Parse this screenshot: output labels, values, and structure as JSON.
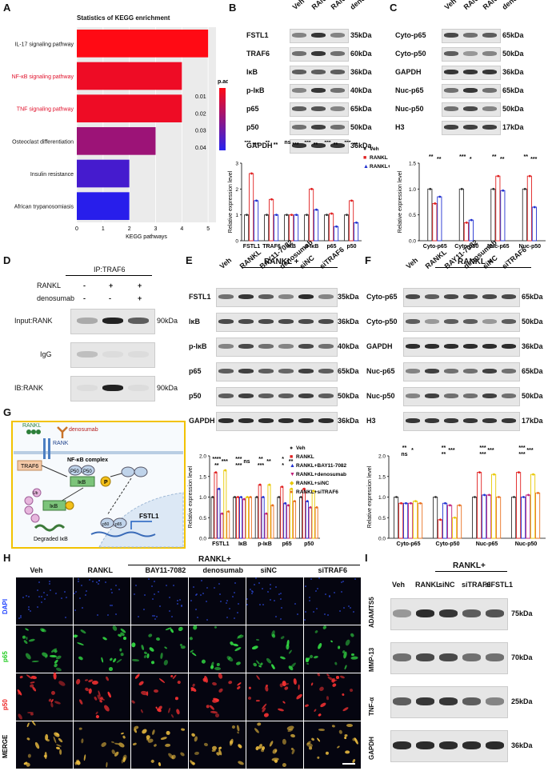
{
  "panel_letters": [
    "A",
    "B",
    "C",
    "D",
    "E",
    "F",
    "G",
    "H",
    "I"
  ],
  "panelA": {
    "title": "Statistics of KEGG enrichment",
    "xlabel": "KEGG pathways",
    "legend_title": "p.adjust",
    "legend_ticks": [
      "0.01",
      "0.02",
      "0.03",
      "0.04"
    ],
    "x_ticks": [
      "0",
      "1",
      "2",
      "3",
      "4",
      "5"
    ],
    "colors": {
      "high": "#ff0a0a",
      "low": "#2222ee",
      "highlight": "#e0102a"
    },
    "chart_data": {
      "type": "bar",
      "orientation": "horizontal",
      "categories": [
        "IL-17 signaling pathway",
        "NF-κB signaling pathway",
        "TNF signaling pathway",
        "Osteoclast differentiation",
        "Insulin resistance",
        "African trypanosomiasis"
      ],
      "values": [
        5,
        4,
        4,
        3,
        2,
        2
      ],
      "padj": [
        0.003,
        0.006,
        0.006,
        0.02,
        0.035,
        0.04
      ],
      "highlighted": [
        false,
        true,
        true,
        false,
        false,
        false
      ],
      "xlim": [
        0,
        5.3
      ]
    }
  },
  "panelB": {
    "header": [
      "Veh",
      "RANKL",
      "RANKL+",
      "denosumab"
    ],
    "rows": [
      {
        "label": "FSTL1",
        "kda": "35kDa"
      },
      {
        "label": "TRAF6",
        "kda": "60kDa"
      },
      {
        "label": "IκB",
        "kda": "36kDa"
      },
      {
        "label": "p-IκB",
        "kda": "40kDa"
      },
      {
        "label": "p65",
        "kda": "65kDa"
      },
      {
        "label": "p50",
        "kda": "50kDa"
      },
      {
        "label": "GAPDH",
        "kda": "36kDa"
      }
    ],
    "chart_data": {
      "type": "bar",
      "ylabel": "Relative expression level",
      "categories": [
        "FSTL1",
        "TRAF6",
        "IκB",
        "p-IκB",
        "p65",
        "p50"
      ],
      "series": [
        {
          "name": "Veh",
          "values": [
            1,
            1,
            1,
            1,
            1,
            1
          ]
        },
        {
          "name": "RANKL",
          "values": [
            2.6,
            1.6,
            1.0,
            2.0,
            1.05,
            1.55
          ]
        },
        {
          "name": "RANKL+ denosumab",
          "values": [
            1.55,
            1.0,
            1.0,
            1.2,
            0.55,
            0.7
          ]
        }
      ],
      "ylim": [
        0,
        3
      ],
      "yticks": [
        "0",
        "1",
        "2",
        "3"
      ],
      "sig": [
        "***",
        "***",
        "**",
        "**",
        "ns",
        "***",
        "***",
        "**",
        "***",
        "**",
        "***",
        "**"
      ]
    }
  },
  "panelC": {
    "header": [
      "Veh",
      "RANKL",
      "RANKL+",
      "denosumab"
    ],
    "rows": [
      {
        "label": "Cyto-p65",
        "kda": "65kDa"
      },
      {
        "label": "Cyto-p50",
        "kda": "50kDa"
      },
      {
        "label": "GAPDH",
        "kda": "36kDa"
      },
      {
        "label": "Nuc-p65",
        "kda": "65kDa"
      },
      {
        "label": "Nuc-p50",
        "kda": "50kDa"
      },
      {
        "label": "H3",
        "kda": "17kDa"
      }
    ],
    "chart_data": {
      "type": "bar",
      "ylabel": "Relative expression level",
      "categories": [
        "Cyto-p65",
        "Cyto-p50",
        "Nuc-p65",
        "Nuc-p50"
      ],
      "series": [
        {
          "name": "Veh",
          "values": [
            1,
            1,
            1,
            1
          ]
        },
        {
          "name": "RANKL",
          "values": [
            0.72,
            0.35,
            1.25,
            1.25
          ]
        },
        {
          "name": "RANKL+ denosumab",
          "values": [
            0.85,
            0.4,
            0.97,
            0.65
          ]
        }
      ],
      "ylim": [
        0,
        1.5
      ],
      "yticks": [
        "0.0",
        "0.5",
        "1.0",
        "1.5"
      ],
      "sig": [
        "**",
        "**",
        "***",
        "*",
        "**",
        "**",
        "**",
        "***"
      ]
    }
  },
  "panelD": {
    "title": "IP:TRAF6",
    "row_labels": [
      "RANKL",
      "denosumab"
    ],
    "signs": [
      [
        "-",
        "+",
        "+"
      ],
      [
        "-",
        "-",
        "+"
      ]
    ],
    "blots": [
      {
        "label": "Input:RANK",
        "kda": "90kDa"
      },
      {
        "label": "IgG",
        "kda": ""
      },
      {
        "label": "IB:RANK",
        "kda": "90kDa"
      }
    ]
  },
  "panelE": {
    "group": "RANKL +",
    "header": [
      "Veh",
      "RANKL",
      "BAY11-7082",
      "denosumab",
      "siNC",
      "siTRAF6"
    ],
    "rows": [
      {
        "label": "FSTL1",
        "kda": "35kDa"
      },
      {
        "label": "IκB",
        "kda": "36kDa"
      },
      {
        "label": "p-IκB",
        "kda": "40kDa"
      },
      {
        "label": "p65",
        "kda": "65kDa"
      },
      {
        "label": "p50",
        "kda": "50kDa"
      },
      {
        "label": "GAPDH",
        "kda": "36kDa"
      }
    ],
    "chart_data": {
      "type": "bar",
      "ylabel": "Relative expression level",
      "categories": [
        "FSTL1",
        "IκB",
        "p-IκB",
        "p65",
        "p50"
      ],
      "series": [
        {
          "name": "Veh",
          "values": [
            1,
            1,
            1,
            1,
            1
          ]
        },
        {
          "name": "RANKL",
          "values": [
            1.6,
            1.0,
            1.3,
            1.25,
            1.2
          ]
        },
        {
          "name": "RANKL+BAY11-7082",
          "values": [
            1.2,
            1.0,
            1.0,
            0.85,
            0.9
          ]
        },
        {
          "name": "RANKL+denosumab",
          "values": [
            0.6,
            0.95,
            0.6,
            0.8,
            0.75
          ]
        },
        {
          "name": "RANKL+siNC",
          "values": [
            1.65,
            1.0,
            1.3,
            1.2,
            1.15
          ]
        },
        {
          "name": "RANKL+siTRAF6",
          "values": [
            0.65,
            1.0,
            0.8,
            0.9,
            0.75
          ]
        }
      ],
      "ylim": [
        0,
        2.0
      ],
      "yticks": [
        "0.0",
        "0.5",
        "1.0",
        "1.5",
        "2.0"
      ],
      "sig": [
        "****",
        "***",
        "**",
        "***",
        "ns",
        "***",
        "**",
        "**",
        "***",
        "*",
        "**",
        "*"
      ]
    }
  },
  "panelF": {
    "group": "RANKL +",
    "header": [
      "Veh",
      "RANKL",
      "BAY11-7082",
      "denosumab",
      "siNC",
      "siTRAF6"
    ],
    "rows": [
      {
        "label": "Cyto-p65",
        "kda": "65kDa"
      },
      {
        "label": "Cyto-p50",
        "kda": "50kDa"
      },
      {
        "label": "GAPDH",
        "kda": "36kDa"
      },
      {
        "label": "Nuc-p65",
        "kda": "65kDa"
      },
      {
        "label": "Nuc-p50",
        "kda": "50kDa"
      },
      {
        "label": "H3",
        "kda": "17kDa"
      }
    ],
    "chart_data": {
      "type": "bar",
      "ylabel": "Relative expression level",
      "categories": [
        "Cyto-p65",
        "Cyto-p50",
        "Nuc-p65",
        "Nuc-p50"
      ],
      "series": [
        {
          "name": "Veh",
          "values": [
            1,
            1,
            1,
            1
          ]
        },
        {
          "name": "RANKL",
          "values": [
            0.85,
            0.45,
            1.6,
            1.6
          ]
        },
        {
          "name": "RANKL+BAY11-7082",
          "values": [
            0.85,
            0.85,
            1.05,
            1.0
          ]
        },
        {
          "name": "RANKL+denosumab",
          "values": [
            0.85,
            0.8,
            1.05,
            1.05
          ]
        },
        {
          "name": "RANKL+siNC",
          "values": [
            0.9,
            0.5,
            1.55,
            1.55
          ]
        },
        {
          "name": "RANKL+siTRAF6",
          "values": [
            0.85,
            0.8,
            1.0,
            1.1
          ]
        }
      ],
      "ylim": [
        0,
        2.0
      ],
      "yticks": [
        "0.0",
        "0.5",
        "1.0",
        "1.5",
        "2.0"
      ],
      "sig": [
        "**",
        "*",
        "ns",
        "**",
        "***",
        "**",
        "***",
        "***",
        "***",
        "***",
        "***",
        "***"
      ]
    }
  },
  "panelG": {
    "labels": {
      "rankl": "RANKL",
      "rank": "RANK",
      "denosumab": "denosumab",
      "complex": "NF-κB complex",
      "traf6": "TRAF6",
      "p50a": "P50",
      "p50b": "P50",
      "ikb1": "IκB",
      "ikb2": "IκB",
      "p": "P",
      "ub": "Ub",
      "degraded": "Degraded IκB",
      "p50n": "p50",
      "p65n": "p65",
      "gene": "FSTL1"
    },
    "colors": {
      "border": "#f2c200",
      "cytoplasm": "#eef4fb",
      "nucleus": "#dde9f6",
      "green": "#7cc47a",
      "traf6": "#f4c9a8",
      "ub": "#e7b6dd"
    }
  },
  "panelH": {
    "group": "RANKL+",
    "columns": [
      "Veh",
      "RANKL",
      "BAY11-7082",
      "denosumab",
      "siNC",
      "siTRAF6"
    ],
    "rows": [
      {
        "label": "DAPI",
        "color": "#2244ff"
      },
      {
        "label": "p65",
        "color": "#22cc22"
      },
      {
        "label": "p50",
        "color": "#ee2222"
      },
      {
        "label": "MERGE",
        "color": "#000000"
      }
    ]
  },
  "panelI": {
    "group": "RANKL+",
    "header": [
      "Veh",
      "RANKL",
      "siNC",
      "siTRAF6",
      "siFSTL1"
    ],
    "rows": [
      {
        "label": "ADAMTS5",
        "kda": "75kDa"
      },
      {
        "label": "MMP-13",
        "kda": "70kDa"
      },
      {
        "label": "TNF-α",
        "kda": "25kDa"
      },
      {
        "label": "GAPDH",
        "kda": "36kDa"
      }
    ]
  }
}
